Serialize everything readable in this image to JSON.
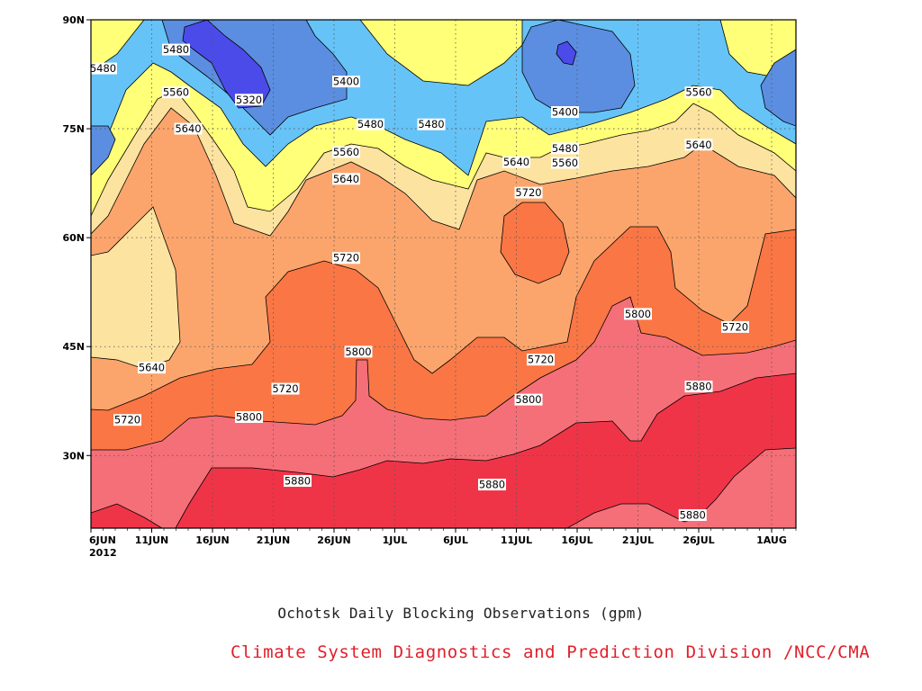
{
  "chart_data": {
    "type": "contour",
    "title": "Ochotsk Daily Blocking Observations (gpm)",
    "credit": "Climate System Diagnostics and Prediction Division /NCC/CMA",
    "x_ticks": [
      {
        "label": "6JUN",
        "sub": "2012"
      },
      {
        "label": "11JUN"
      },
      {
        "label": "16JUN"
      },
      {
        "label": "21JUN"
      },
      {
        "label": "26JUN"
      },
      {
        "label": "1JUL"
      },
      {
        "label": "6JUL"
      },
      {
        "label": "11JUL"
      },
      {
        "label": "16JUL"
      },
      {
        "label": "21JUL"
      },
      {
        "label": "26JUL"
      },
      {
        "label": "1AUG"
      }
    ],
    "y_ticks": [
      "30N",
      "45N",
      "60N",
      "75N",
      "90N"
    ],
    "y_values": [
      30,
      45,
      60,
      75,
      90
    ],
    "ylim": [
      20,
      90
    ],
    "xlim_days": [
      0,
      58
    ],
    "grid": true,
    "levels": [
      5320,
      5400,
      5480,
      5560,
      5640,
      5720,
      5800,
      5880
    ],
    "colors": {
      "below_5320": "#4b4bea",
      "5320_5400": "#5b8ee0",
      "5400_5480": "#66c3f7",
      "5480_5560": "#ffff78",
      "5560_5640": "#fde3a0",
      "5640_5720": "#fba56c",
      "5720_5800": "#fb7645",
      "5800_5880": "#f56f78",
      "above_5880": "#f03448"
    },
    "contour_labels": [
      {
        "value": "5480",
        "day": 1.0,
        "lat": 83.3
      },
      {
        "value": "5480",
        "day": 7.0,
        "lat": 85.9
      },
      {
        "value": "5560",
        "day": 7.0,
        "lat": 80.0
      },
      {
        "value": "5640",
        "day": 8.0,
        "lat": 75.0
      },
      {
        "value": "5320",
        "day": 13.0,
        "lat": 79.0
      },
      {
        "value": "5400",
        "day": 21.0,
        "lat": 81.5
      },
      {
        "value": "5480",
        "day": 23.0,
        "lat": 75.6
      },
      {
        "value": "5480",
        "day": 28.0,
        "lat": 75.6
      },
      {
        "value": "5560",
        "day": 21.0,
        "lat": 71.8
      },
      {
        "value": "5640",
        "day": 21.0,
        "lat": 68.1
      },
      {
        "value": "5720",
        "day": 21.0,
        "lat": 57.2
      },
      {
        "value": "5640",
        "day": 5.0,
        "lat": 42.1
      },
      {
        "value": "5720",
        "day": 16.0,
        "lat": 39.2
      },
      {
        "value": "5720",
        "day": 3.0,
        "lat": 34.9
      },
      {
        "value": "5800",
        "day": 13.0,
        "lat": 35.3
      },
      {
        "value": "5800",
        "day": 22.0,
        "lat": 44.3
      },
      {
        "value": "5880",
        "day": 17.0,
        "lat": 26.5
      },
      {
        "value": "5640",
        "day": 35.0,
        "lat": 70.4
      },
      {
        "value": "5720",
        "day": 36.0,
        "lat": 66.2
      },
      {
        "value": "5400",
        "day": 39.0,
        "lat": 77.3
      },
      {
        "value": "5480",
        "day": 39.0,
        "lat": 72.3
      },
      {
        "value": "5560",
        "day": 39.0,
        "lat": 70.3
      },
      {
        "value": "5720",
        "day": 37.0,
        "lat": 43.2
      },
      {
        "value": "5800",
        "day": 36.0,
        "lat": 37.7
      },
      {
        "value": "5880",
        "day": 33.0,
        "lat": 26.0
      },
      {
        "value": "5800",
        "day": 45.0,
        "lat": 49.5
      },
      {
        "value": "5560",
        "day": 50.0,
        "lat": 80.0
      },
      {
        "value": "5640",
        "day": 50.0,
        "lat": 72.8
      },
      {
        "value": "5720",
        "day": 53.0,
        "lat": 47.7
      },
      {
        "value": "5880",
        "day": 50.0,
        "lat": 39.5
      },
      {
        "value": "5880",
        "day": 49.5,
        "lat": 21.8
      }
    ]
  }
}
